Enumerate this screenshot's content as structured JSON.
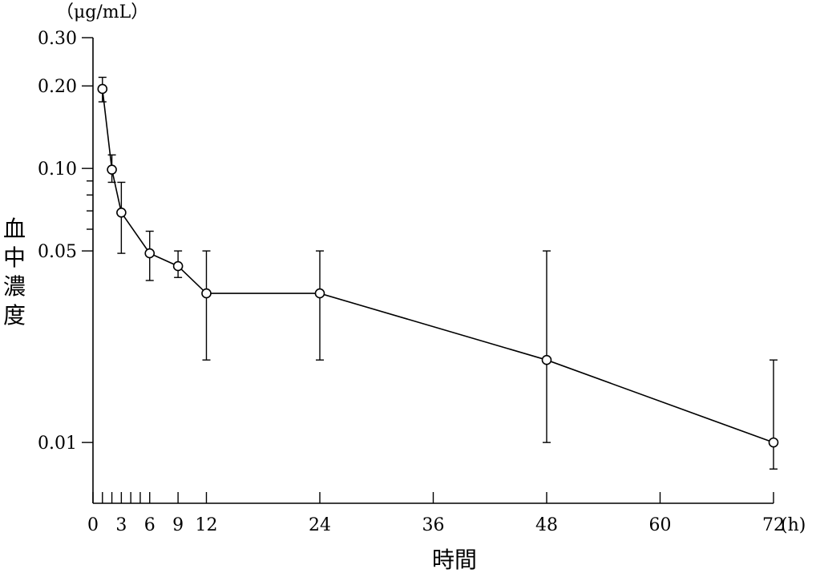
{
  "chart_data": {
    "type": "line",
    "y_unit": "（μg/mL）",
    "x_unit": "(h)",
    "xlabel": "時間",
    "ylabel_chars": [
      "血",
      "中",
      "濃",
      "度"
    ],
    "x_ticks": [
      0,
      3,
      6,
      9,
      12,
      24,
      36,
      48,
      60,
      72
    ],
    "x_minor_ticks": [
      1,
      2,
      4,
      5
    ],
    "xlim": [
      0,
      72
    ],
    "y_ticks": [
      {
        "value": 0.3,
        "label": "0.30"
      },
      {
        "value": 0.2,
        "label": "0.20"
      },
      {
        "value": 0.1,
        "label": "0.10"
      },
      {
        "value": 0.05,
        "label": "0.05"
      },
      {
        "value": 0.01,
        "label": "0.01"
      }
    ],
    "y_minor_ticks": [
      0.09,
      0.08,
      0.07,
      0.06
    ],
    "y_scale": "log",
    "ylim": [
      0.006,
      0.3
    ],
    "series": [
      {
        "x": [
          1,
          2,
          3,
          6,
          9,
          12,
          24,
          48,
          72
        ],
        "y": [
          0.195,
          0.099,
          0.069,
          0.049,
          0.044,
          0.035,
          0.035,
          0.02,
          0.01
        ],
        "low": [
          0.175,
          0.089,
          0.049,
          0.039,
          0.04,
          0.02,
          0.02,
          0.01,
          0.008
        ],
        "high": [
          0.215,
          0.112,
          0.089,
          0.059,
          0.05,
          0.05,
          0.05,
          0.05,
          0.02
        ]
      }
    ],
    "grid": false
  }
}
